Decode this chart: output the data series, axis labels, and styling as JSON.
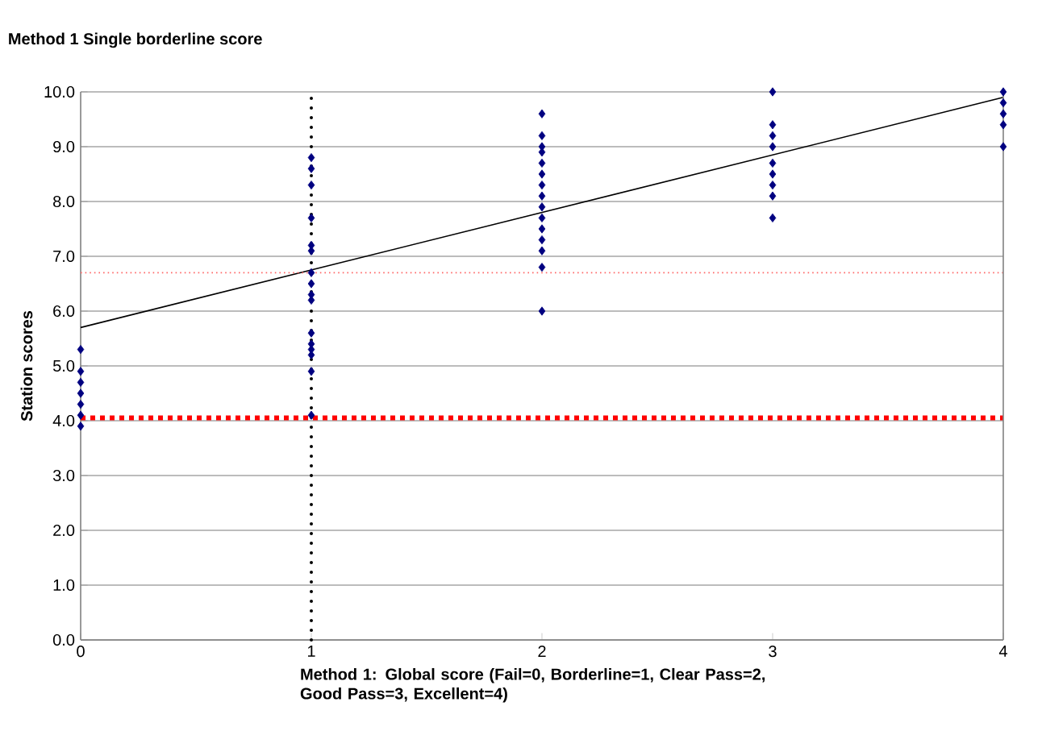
{
  "chart_data": {
    "type": "scatter",
    "title": "Method 1 Single borderline score",
    "xlabel": "Method 1: Global score (Fail=0, Borderline=1, Clear Pass=2, Good Pass=3, Excellent=4)",
    "ylabel": "Station scores",
    "series": [
      {
        "color": "#000080",
        "marker": "diamond",
        "x": [
          0,
          0,
          0,
          0,
          0,
          0,
          0,
          1,
          1,
          1,
          1,
          1,
          1,
          1,
          1,
          1,
          1,
          1,
          1,
          1,
          1,
          1,
          1,
          2,
          2,
          2,
          2,
          2,
          2,
          2,
          2,
          2,
          2,
          2,
          2,
          2,
          2,
          2,
          3,
          3,
          3,
          3,
          3,
          3,
          3,
          3,
          3,
          4,
          4,
          4,
          4,
          4
        ],
        "values": [
          5.3,
          4.9,
          4.7,
          4.5,
          4.3,
          4.1,
          3.9,
          8.8,
          8.6,
          8.3,
          7.7,
          7.2,
          7.1,
          6.7,
          6.5,
          6.3,
          6.2,
          5.6,
          5.4,
          5.3,
          5.2,
          4.9,
          4.1,
          9.6,
          9.2,
          9.0,
          8.9,
          8.7,
          8.5,
          8.3,
          8.1,
          7.9,
          7.7,
          7.5,
          7.3,
          7.1,
          6.8,
          6.0,
          10.0,
          9.4,
          9.2,
          9.0,
          8.7,
          8.5,
          8.3,
          8.1,
          7.7,
          10.0,
          9.8,
          9.6,
          9.4,
          9.0
        ]
      },
      {
        "type": "line",
        "color": "#000000",
        "marker": "none",
        "line_style": "solid",
        "x": [
          0,
          4
        ],
        "values": [
          5.7,
          9.9
        ]
      }
    ],
    "ref_lines": [
      {
        "axis": "y",
        "value": 6.7,
        "color": "#ff6666",
        "line_style": "dotted"
      },
      {
        "axis": "y",
        "value": 4.05,
        "color": "#ff0000",
        "line_style": "dotted"
      },
      {
        "axis": "x",
        "value": 1,
        "color": "#000000",
        "line_style": "dotted"
      }
    ],
    "xlim": [
      0,
      4
    ],
    "ylim": [
      0,
      10
    ],
    "xticks": [
      0,
      1,
      2,
      3,
      4
    ],
    "yticks": [
      {
        "value": 0,
        "label": "0.0"
      },
      {
        "value": 1,
        "label": "1.0"
      },
      {
        "value": 2,
        "label": "2.0"
      },
      {
        "value": 3,
        "label": "3.0"
      },
      {
        "value": 4,
        "label": "4.0"
      },
      {
        "value": 5,
        "label": "5.0"
      },
      {
        "value": 6,
        "label": "6.0"
      },
      {
        "value": 7,
        "label": "7.0"
      },
      {
        "value": 8,
        "label": "8.0"
      },
      {
        "value": 9,
        "label": "9.0"
      },
      {
        "value": 10,
        "label": "10.0"
      }
    ],
    "grid": "y"
  }
}
